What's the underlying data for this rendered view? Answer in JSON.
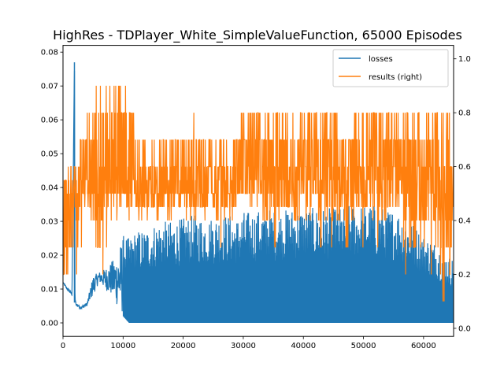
{
  "chart_data": {
    "type": "line",
    "title": "HighRes - TDPlayer_White_SimpleValueFunction, 65000 Episodes",
    "xlabel": "",
    "ylabel": "",
    "xlim": [
      0,
      65000
    ],
    "ylim": [
      -0.004,
      0.082
    ],
    "ylim_right": [
      -0.03,
      1.05
    ],
    "x_ticks": [
      0,
      10000,
      20000,
      30000,
      40000,
      50000,
      60000
    ],
    "x_tick_labels": [
      "0",
      "10000",
      "20000",
      "30000",
      "40000",
      "50000",
      "60000"
    ],
    "y_ticks": [
      0.0,
      0.01,
      0.02,
      0.03,
      0.04,
      0.05,
      0.06,
      0.07,
      0.08
    ],
    "y_tick_labels": [
      "0.00",
      "0.01",
      "0.02",
      "0.03",
      "0.04",
      "0.05",
      "0.06",
      "0.07",
      "0.08"
    ],
    "y_ticks_right": [
      0.0,
      0.2,
      0.4,
      0.6,
      0.8,
      1.0
    ],
    "y_tick_labels_right": [
      "0.0",
      "0.2",
      "0.4",
      "0.6",
      "0.8",
      "1.0"
    ],
    "grid": false,
    "legend_position": "top-right",
    "series": [
      {
        "name": "losses",
        "axis": "left",
        "color": "#1f77b4",
        "x": [
          0,
          500,
          1000,
          1500,
          1900,
          2000,
          2200,
          3000,
          4000,
          5000,
          6000,
          7000,
          8000,
          9000,
          10000,
          11000,
          12000,
          14000,
          16000,
          18000,
          20000,
          22000,
          24000,
          26000,
          28000,
          29000,
          30000,
          32000,
          34000,
          36000,
          38000,
          40000,
          42000,
          44000,
          46000,
          48000,
          50000,
          52000,
          54000,
          56000,
          58000,
          60000,
          62000,
          64000,
          65000
        ],
        "y": [
          0.012,
          0.01,
          0.009,
          0.008,
          0.077,
          0.006,
          0.005,
          0.004,
          0.005,
          0.008,
          0.012,
          0.01,
          0.008,
          0.005,
          0.002,
          0.0,
          0.0,
          0.0,
          0.0,
          0.0,
          0.0,
          0.0,
          0.0,
          0.0,
          0.0,
          0.0,
          0.0,
          0.0,
          0.0,
          0.0,
          0.0,
          0.0,
          0.0,
          0.0,
          0.0,
          0.0,
          0.0,
          0.0,
          0.0,
          0.0,
          0.0,
          0.0,
          0.0,
          0.0,
          0.0
        ],
        "envelope_max": [
          0.012,
          0.011,
          0.01,
          0.009,
          0.077,
          0.007,
          0.006,
          0.005,
          0.006,
          0.014,
          0.015,
          0.016,
          0.018,
          0.02,
          0.026,
          0.025,
          0.027,
          0.028,
          0.03,
          0.03,
          0.031,
          0.032,
          0.031,
          0.032,
          0.032,
          0.031,
          0.033,
          0.033,
          0.034,
          0.033,
          0.034,
          0.034,
          0.034,
          0.034,
          0.034,
          0.035,
          0.035,
          0.035,
          0.034,
          0.033,
          0.03,
          0.026,
          0.024,
          0.02,
          0.019
        ]
      },
      {
        "name": "results (right)",
        "axis": "right",
        "color": "#ff7f0e",
        "x": [
          0,
          1000,
          2000,
          3000,
          4000,
          5000,
          6000,
          7000,
          8000,
          9000,
          10000,
          12000,
          14000,
          16000,
          18000,
          20000,
          22000,
          24000,
          26000,
          28000,
          29000,
          30000,
          32000,
          34000,
          36000,
          38000,
          40000,
          42000,
          44000,
          46000,
          48000,
          50000,
          52000,
          54000,
          56000,
          58000,
          60000,
          62000,
          64000,
          65000
        ],
        "y": [
          0.5,
          0.5,
          0.5,
          0.6,
          0.6,
          0.5,
          0.5,
          0.6,
          0.5,
          0.6,
          0.5,
          0.5,
          0.5,
          0.5,
          0.5,
          0.5,
          0.5,
          0.5,
          0.5,
          0.5,
          0.55,
          0.6,
          0.6,
          0.6,
          0.6,
          0.6,
          0.6,
          0.6,
          0.6,
          0.6,
          0.6,
          0.6,
          0.6,
          0.6,
          0.6,
          0.6,
          0.55,
          0.5,
          0.5,
          0.5
        ],
        "band_min": [
          0.0,
          0.1,
          0.2,
          0.3,
          0.3,
          0.3,
          0.0,
          0.3,
          0.3,
          0.35,
          0.4,
          0.4,
          0.4,
          0.35,
          0.4,
          0.4,
          0.35,
          0.4,
          0.3,
          0.4,
          0.45,
          0.4,
          0.4,
          0.35,
          0.3,
          0.35,
          0.3,
          0.3,
          0.35,
          0.3,
          0.3,
          0.3,
          0.3,
          0.3,
          0.35,
          0.0,
          0.3,
          0.1,
          0.0,
          0.3
        ],
        "band_max": [
          0.6,
          0.6,
          0.6,
          0.7,
          0.8,
          0.9,
          0.9,
          0.9,
          0.9,
          1.0,
          0.9,
          0.8,
          0.7,
          0.7,
          0.7,
          0.7,
          0.8,
          0.7,
          0.7,
          0.7,
          0.8,
          0.8,
          0.8,
          0.8,
          0.8,
          0.8,
          0.8,
          0.8,
          0.8,
          0.8,
          0.8,
          0.8,
          0.8,
          0.8,
          0.8,
          0.8,
          0.8,
          0.8,
          0.8,
          0.7
        ]
      }
    ]
  }
}
